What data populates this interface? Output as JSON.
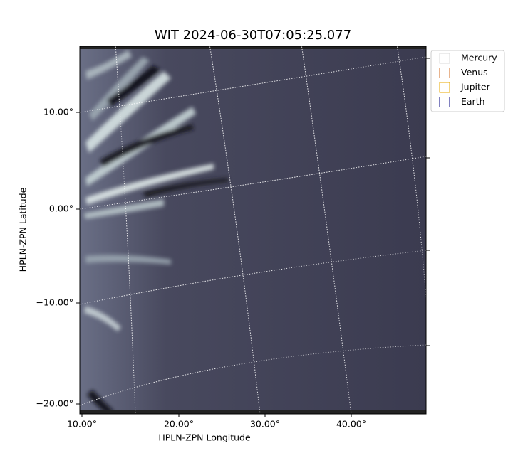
{
  "title": "WIT 2024-06-30T07:05:25.077",
  "x_axis": {
    "label": "HPLN-ZPN Longitude",
    "ticks": [
      "10.00°",
      "20.00°",
      "30.00°",
      "40.00°"
    ]
  },
  "y_axis": {
    "label": "HPLN-ZPN Latitude",
    "ticks": [
      "10.00°",
      "0.00°",
      "−10.00°",
      "−20.00°"
    ]
  },
  "legend": {
    "items": [
      {
        "label": "Mercury",
        "color": "#d8d8d8"
      },
      {
        "label": "Venus",
        "color": "#d2691e"
      },
      {
        "label": "Jupiter",
        "color": "#e8a800"
      },
      {
        "label": "Earth",
        "color": "#000080"
      }
    ]
  }
}
